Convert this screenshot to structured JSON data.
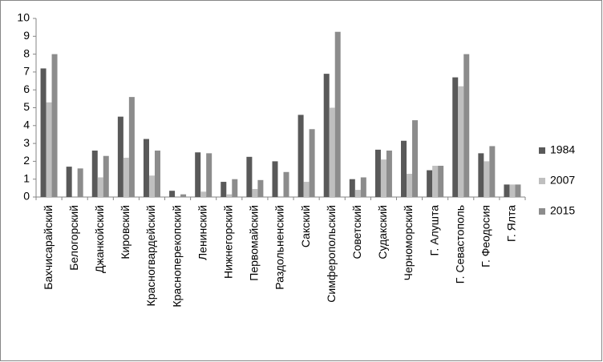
{
  "chart_data": {
    "type": "bar",
    "categories": [
      "Бахчисарайский",
      "Белогорский",
      "Джанкойский",
      "Кировский",
      "Красногвардейский",
      "Красноперекопский",
      "Ленинский",
      "Нижнегорский",
      "Первомайский",
      "Раздольненский",
      "Сакский",
      "Симферопольский",
      "Советский",
      "Судакский",
      "Черноморский",
      "Г. Алушта",
      "Г. Севастополь",
      "Г. Феодосия",
      "Г. Ялта"
    ],
    "series": [
      {
        "name": "1984",
        "color": "#595959",
        "values": [
          7.2,
          1.7,
          2.6,
          4.5,
          3.25,
          0.35,
          2.5,
          0.85,
          2.25,
          2.0,
          4.6,
          6.9,
          1.0,
          2.65,
          3.15,
          1.5,
          6.7,
          2.45,
          0.7
        ]
      },
      {
        "name": "2007",
        "color": "#bfbfbf",
        "values": [
          5.3,
          0,
          1.1,
          2.2,
          1.2,
          0,
          0.3,
          0.15,
          0.45,
          0.05,
          0.85,
          5.0,
          0.4,
          2.1,
          1.3,
          1.75,
          6.2,
          2.0,
          0.7
        ]
      },
      {
        "name": "2015",
        "color": "#8c8c8c",
        "values": [
          8.0,
          1.6,
          2.3,
          5.6,
          2.6,
          0.15,
          2.45,
          1.0,
          0.95,
          1.4,
          3.8,
          9.25,
          1.1,
          2.6,
          4.3,
          1.75,
          8.0,
          2.85,
          0.7
        ]
      }
    ],
    "ylim": [
      0,
      10
    ],
    "yticks": [
      0,
      1,
      2,
      3,
      4,
      5,
      6,
      7,
      8,
      9,
      10
    ],
    "legend": "right"
  }
}
